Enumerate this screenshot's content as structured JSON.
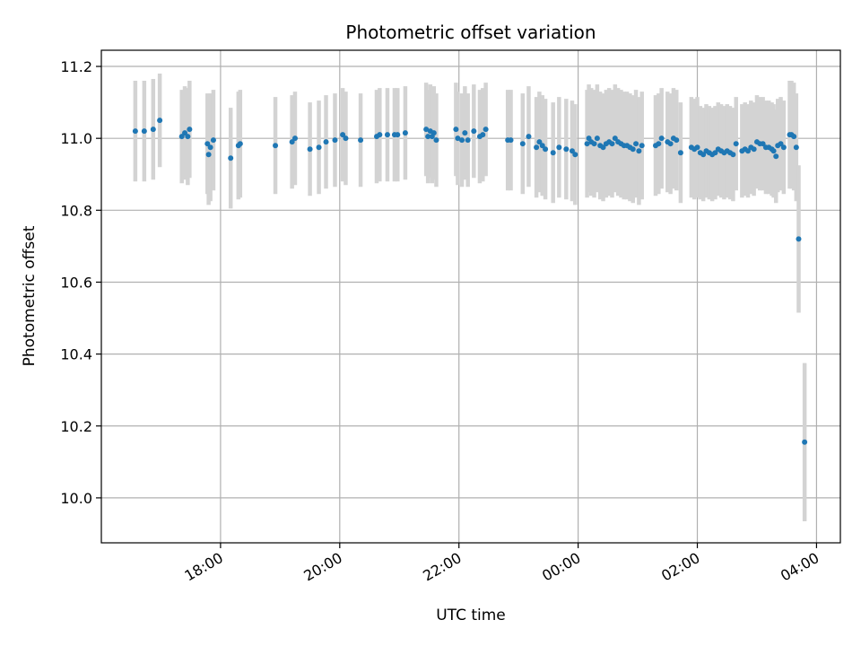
{
  "chart_data": {
    "type": "scatter",
    "title": "Photometric offset variation",
    "xlabel": "UTC time",
    "ylabel": "Photometric offset",
    "x_tick_labels": [
      "18:00",
      "20:00",
      "22:00",
      "00:00",
      "02:00",
      "04:00"
    ],
    "x_tick_hours": [
      18,
      20,
      22,
      24,
      26,
      28
    ],
    "y_ticks": [
      10.0,
      10.2,
      10.4,
      10.6,
      10.8,
      11.0,
      11.2
    ],
    "y_tick_labels": [
      "10.0",
      "10.2",
      "10.4",
      "10.6",
      "10.8",
      "11.0",
      "11.2"
    ],
    "xlim": [
      16.0,
      28.4
    ],
    "ylim": [
      9.875,
      11.245
    ],
    "grid": true,
    "colors": {
      "marker": "#1f77b4",
      "errorbar": "#d3d3d3",
      "grid": "#b0b0b0"
    },
    "series": [
      {
        "points": [
          [
            16.57,
            11.02,
            0.14
          ],
          [
            16.72,
            11.02,
            0.14
          ],
          [
            16.87,
            11.025,
            0.14
          ],
          [
            16.98,
            11.05,
            0.13
          ],
          [
            17.35,
            11.005,
            0.13
          ],
          [
            17.4,
            11.015,
            0.13
          ],
          [
            17.45,
            11.005,
            0.135
          ],
          [
            17.48,
            11.025,
            0.135
          ],
          [
            17.78,
            10.985,
            0.14
          ],
          [
            17.8,
            10.955,
            0.14
          ],
          [
            17.83,
            10.975,
            0.15
          ],
          [
            17.88,
            10.995,
            0.14
          ],
          [
            18.17,
            10.945,
            0.14
          ],
          [
            18.3,
            10.98,
            0.15
          ],
          [
            18.33,
            10.985,
            0.15
          ],
          [
            18.92,
            10.98,
            0.135
          ],
          [
            19.2,
            10.99,
            0.13
          ],
          [
            19.25,
            11.0,
            0.13
          ],
          [
            19.5,
            10.97,
            0.13
          ],
          [
            19.65,
            10.975,
            0.13
          ],
          [
            19.77,
            10.99,
            0.13
          ],
          [
            19.92,
            10.995,
            0.13
          ],
          [
            20.05,
            11.01,
            0.13
          ],
          [
            20.1,
            11.0,
            0.13
          ],
          [
            20.35,
            10.995,
            0.13
          ],
          [
            20.62,
            11.005,
            0.13
          ],
          [
            20.67,
            11.01,
            0.13
          ],
          [
            20.8,
            11.01,
            0.13
          ],
          [
            20.92,
            11.01,
            0.13
          ],
          [
            20.97,
            11.01,
            0.13
          ],
          [
            21.1,
            11.015,
            0.13
          ],
          [
            21.45,
            11.025,
            0.13
          ],
          [
            21.48,
            11.005,
            0.13
          ],
          [
            21.52,
            11.02,
            0.13
          ],
          [
            21.55,
            11.005,
            0.13
          ],
          [
            21.58,
            11.015,
            0.13
          ],
          [
            21.62,
            10.995,
            0.13
          ],
          [
            21.95,
            11.025,
            0.13
          ],
          [
            21.98,
            11.0,
            0.13
          ],
          [
            22.05,
            10.995,
            0.13
          ],
          [
            22.1,
            11.015,
            0.13
          ],
          [
            22.15,
            10.995,
            0.13
          ],
          [
            22.25,
            11.02,
            0.13
          ],
          [
            22.35,
            11.005,
            0.13
          ],
          [
            22.4,
            11.01,
            0.13
          ],
          [
            22.45,
            11.025,
            0.13
          ],
          [
            22.82,
            10.995,
            0.14
          ],
          [
            22.87,
            10.995,
            0.14
          ],
          [
            23.07,
            10.985,
            0.14
          ],
          [
            23.17,
            11.005,
            0.14
          ],
          [
            23.3,
            10.975,
            0.14
          ],
          [
            23.35,
            10.99,
            0.14
          ],
          [
            23.4,
            10.98,
            0.14
          ],
          [
            23.45,
            10.97,
            0.14
          ],
          [
            23.58,
            10.96,
            0.14
          ],
          [
            23.68,
            10.975,
            0.14
          ],
          [
            23.8,
            10.97,
            0.14
          ],
          [
            23.9,
            10.965,
            0.14
          ],
          [
            23.95,
            10.955,
            0.14
          ],
          [
            24.15,
            10.985,
            0.15
          ],
          [
            24.18,
            11.0,
            0.15
          ],
          [
            24.22,
            10.99,
            0.15
          ],
          [
            24.27,
            10.985,
            0.15
          ],
          [
            24.32,
            11.0,
            0.15
          ],
          [
            24.37,
            10.98,
            0.15
          ],
          [
            24.42,
            10.975,
            0.15
          ],
          [
            24.47,
            10.985,
            0.15
          ],
          [
            24.52,
            10.99,
            0.15
          ],
          [
            24.57,
            10.985,
            0.15
          ],
          [
            24.62,
            11.0,
            0.15
          ],
          [
            24.67,
            10.99,
            0.15
          ],
          [
            24.72,
            10.985,
            0.15
          ],
          [
            24.77,
            10.98,
            0.15
          ],
          [
            24.82,
            10.98,
            0.15
          ],
          [
            24.87,
            10.975,
            0.15
          ],
          [
            24.92,
            10.97,
            0.15
          ],
          [
            24.97,
            10.985,
            0.15
          ],
          [
            25.02,
            10.965,
            0.15
          ],
          [
            25.07,
            10.98,
            0.15
          ],
          [
            25.3,
            10.98,
            0.14
          ],
          [
            25.35,
            10.985,
            0.14
          ],
          [
            25.4,
            11.0,
            0.14
          ],
          [
            25.5,
            10.99,
            0.14
          ],
          [
            25.55,
            10.985,
            0.14
          ],
          [
            25.6,
            11.0,
            0.14
          ],
          [
            25.65,
            10.995,
            0.14
          ],
          [
            25.72,
            10.96,
            0.14
          ],
          [
            25.9,
            10.975,
            0.14
          ],
          [
            25.95,
            10.97,
            0.14
          ],
          [
            26.0,
            10.975,
            0.14
          ],
          [
            26.05,
            10.96,
            0.13
          ],
          [
            26.1,
            10.955,
            0.13
          ],
          [
            26.15,
            10.965,
            0.13
          ],
          [
            26.2,
            10.96,
            0.13
          ],
          [
            26.25,
            10.955,
            0.13
          ],
          [
            26.3,
            10.96,
            0.13
          ],
          [
            26.35,
            10.97,
            0.13
          ],
          [
            26.4,
            10.965,
            0.13
          ],
          [
            26.45,
            10.96,
            0.13
          ],
          [
            26.5,
            10.965,
            0.13
          ],
          [
            26.55,
            10.96,
            0.13
          ],
          [
            26.6,
            10.955,
            0.13
          ],
          [
            26.65,
            10.985,
            0.13
          ],
          [
            26.75,
            10.965,
            0.13
          ],
          [
            26.8,
            10.97,
            0.13
          ],
          [
            26.85,
            10.965,
            0.13
          ],
          [
            26.9,
            10.975,
            0.13
          ],
          [
            26.95,
            10.97,
            0.13
          ],
          [
            27.0,
            10.99,
            0.13
          ],
          [
            27.05,
            10.985,
            0.13
          ],
          [
            27.1,
            10.985,
            0.13
          ],
          [
            27.15,
            10.975,
            0.13
          ],
          [
            27.2,
            10.975,
            0.13
          ],
          [
            27.25,
            10.97,
            0.13
          ],
          [
            27.28,
            10.965,
            0.13
          ],
          [
            27.32,
            10.95,
            0.13
          ],
          [
            27.35,
            10.98,
            0.13
          ],
          [
            27.4,
            10.985,
            0.13
          ],
          [
            27.45,
            10.975,
            0.13
          ],
          [
            27.55,
            11.01,
            0.15
          ],
          [
            27.58,
            11.01,
            0.15
          ],
          [
            27.62,
            11.005,
            0.15
          ],
          [
            27.66,
            10.975,
            0.15
          ],
          [
            27.7,
            10.72,
            0.205
          ],
          [
            27.8,
            10.155,
            0.22
          ]
        ]
      }
    ]
  }
}
